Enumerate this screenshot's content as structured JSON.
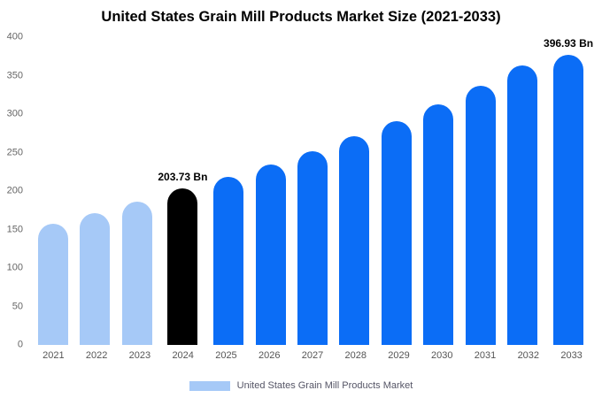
{
  "title": "United States Grain Mill Products Market Size (2021-2033)",
  "legend": {
    "label": "United States Grain Mill Products Market",
    "swatch_color": "#a6c9f7"
  },
  "colors": {
    "historical_bar": "#a6c9f7",
    "base_year_bar": "#000000",
    "forecast_bar": "#0b6df6"
  },
  "chart_data": {
    "type": "bar",
    "title": "United States Grain Mill Products Market Size (2021-2033)",
    "categories": [
      "2021",
      "2022",
      "2023",
      "2024",
      "2025",
      "2026",
      "2027",
      "2028",
      "2029",
      "2030",
      "2031",
      "2032",
      "2033"
    ],
    "values": [
      158,
      171,
      186,
      203.73,
      218,
      234,
      252,
      271,
      291,
      313,
      337,
      363,
      396.93
    ],
    "bar_colors": [
      "#a6c9f7",
      "#a6c9f7",
      "#a6c9f7",
      "#000000",
      "#0b6df6",
      "#0b6df6",
      "#0b6df6",
      "#0b6df6",
      "#0b6df6",
      "#0b6df6",
      "#0b6df6",
      "#0b6df6",
      "#0b6df6"
    ],
    "annotations": [
      {
        "index": 3,
        "text": "203.73 Bn"
      },
      {
        "index": 12,
        "text": "396.93 Bn"
      }
    ],
    "xlabel": "",
    "ylabel": "",
    "ylim": [
      0,
      400
    ],
    "yticks": [
      0,
      50,
      100,
      150,
      200,
      250,
      300,
      350,
      400
    ],
    "grid": false,
    "legend_position": "bottom"
  }
}
